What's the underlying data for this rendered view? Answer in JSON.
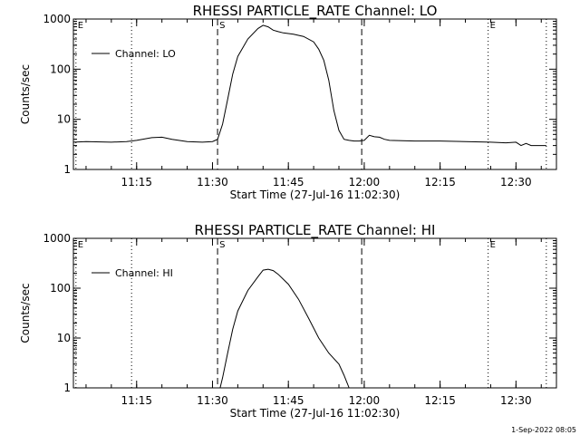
{
  "footer_text": "1-Sep-2022 08:05",
  "chart_data": [
    {
      "type": "line",
      "title": "RHESSI PARTICLE_RATE Channel: LO",
      "xlabel": "Start Time (27-Jul-16 11:02:30)",
      "ylabel": "Counts/sec",
      "y_scale": "log",
      "ylim": [
        1,
        1000
      ],
      "xlim": [
        "11:02:30",
        "12:38:00"
      ],
      "x_ticks": [
        "11:15",
        "11:30",
        "11:45",
        "12:00",
        "12:15",
        "12:30"
      ],
      "y_ticks": [
        "1",
        "10",
        "100",
        "1000"
      ],
      "legend": {
        "label": "Channel: LO",
        "placement": "top-left"
      },
      "markers": [
        {
          "time": "11:03:00",
          "style": "dotted",
          "label": "E"
        },
        {
          "time": "11:14:00",
          "style": "dotted",
          "label": ""
        },
        {
          "time": "11:31:00",
          "style": "dashed",
          "label": "S"
        },
        {
          "time": "11:59:30",
          "style": "dashed",
          "label": ""
        },
        {
          "time": "12:24:30",
          "style": "dotted",
          "label": "E"
        },
        {
          "time": "12:36:00",
          "style": "dotted",
          "label": ""
        }
      ],
      "series": [
        {
          "name": "Channel: LO",
          "x": [
            "11:02:30",
            "11:05:00",
            "11:10:00",
            "11:13:00",
            "11:15:00",
            "11:18:00",
            "11:20:00",
            "11:22:00",
            "11:25:00",
            "11:28:00",
            "11:30:00",
            "11:31:00",
            "11:32:00",
            "11:33:00",
            "11:34:00",
            "11:35:00",
            "11:37:00",
            "11:39:00",
            "11:40:00",
            "11:41:00",
            "11:42:00",
            "11:43:00",
            "11:44:00",
            "11:46:00",
            "11:48:00",
            "11:50:00",
            "11:51:00",
            "11:52:00",
            "11:53:00",
            "11:54:00",
            "11:55:00",
            "11:56:00",
            "11:57:00",
            "11:58:00",
            "11:59:00",
            "12:00:00",
            "12:01:00",
            "12:02:00",
            "12:03:00",
            "12:04:00",
            "12:05:00",
            "12:10:00",
            "12:15:00",
            "12:20:00",
            "12:25:00",
            "12:28:00",
            "12:30:00",
            "12:31:00",
            "12:32:00",
            "12:33:00",
            "12:36:00"
          ],
          "y": [
            3.5,
            3.6,
            3.5,
            3.6,
            3.8,
            4.3,
            4.4,
            4.0,
            3.6,
            3.5,
            3.6,
            4.0,
            8,
            25,
            80,
            180,
            400,
            650,
            750,
            700,
            600,
            560,
            530,
            500,
            450,
            350,
            250,
            150,
            60,
            15,
            6,
            4.0,
            3.8,
            3.7,
            3.7,
            3.8,
            4.8,
            4.5,
            4.4,
            4.0,
            3.8,
            3.7,
            3.7,
            3.6,
            3.5,
            3.4,
            3.5,
            3.0,
            3.3,
            3.0,
            3.0
          ]
        }
      ]
    },
    {
      "type": "line",
      "title": "RHESSI PARTICLE_RATE Channel: HI",
      "xlabel": "Start Time (27-Jul-16 11:02:30)",
      "ylabel": "Counts/sec",
      "y_scale": "log",
      "ylim": [
        1,
        1000
      ],
      "xlim": [
        "11:02:30",
        "12:38:00"
      ],
      "x_ticks": [
        "11:15",
        "11:30",
        "11:45",
        "12:00",
        "12:15",
        "12:30"
      ],
      "y_ticks": [
        "1",
        "10",
        "100",
        "1000"
      ],
      "legend": {
        "label": "Channel: HI",
        "placement": "top-left"
      },
      "markers": [
        {
          "time": "11:03:00",
          "style": "dotted",
          "label": "E"
        },
        {
          "time": "11:14:00",
          "style": "dotted",
          "label": ""
        },
        {
          "time": "11:31:00",
          "style": "dashed",
          "label": "S"
        },
        {
          "time": "11:59:30",
          "style": "dashed",
          "label": ""
        },
        {
          "time": "12:24:30",
          "style": "dotted",
          "label": "E"
        },
        {
          "time": "12:36:00",
          "style": "dotted",
          "label": ""
        }
      ],
      "series": [
        {
          "name": "Channel: HI",
          "x": [
            "11:31:30",
            "11:32:00",
            "11:33:00",
            "11:34:00",
            "11:35:00",
            "11:37:00",
            "11:39:00",
            "11:40:00",
            "11:41:00",
            "11:42:00",
            "11:43:00",
            "11:45:00",
            "11:47:00",
            "11:49:00",
            "11:51:00",
            "11:53:00",
            "11:55:00",
            "11:56:00",
            "11:57:00"
          ],
          "y": [
            1.0,
            1.6,
            5,
            15,
            35,
            90,
            170,
            230,
            240,
            225,
            190,
            120,
            60,
            25,
            10,
            5,
            3,
            1.8,
            1.0
          ]
        }
      ]
    }
  ]
}
